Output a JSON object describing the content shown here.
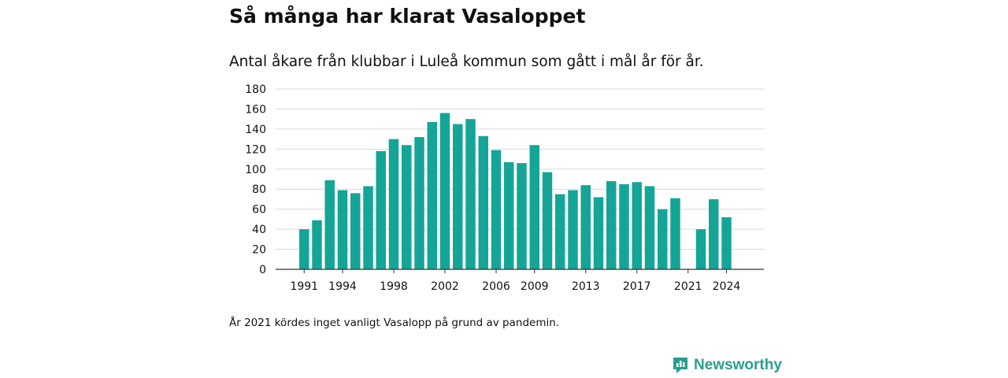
{
  "title": "Så många har klarat Vasaloppet",
  "subtitle": "Antal åkare från klubbar i Luleå kommun som gått i mål år för år.",
  "note": "År 2021 kördes inget vanligt Vasalopp på grund av pandemin.",
  "brand": {
    "name": "Newsworthy",
    "logo_icon": "newsworthy-logo-icon",
    "color": "#2a9d8f"
  },
  "colors": {
    "bar": "#15a597",
    "grid": "#d9d9d9",
    "axis": "#333333"
  },
  "chart_data": {
    "type": "bar",
    "title": "",
    "xlabel": "",
    "ylabel": "",
    "ylim": [
      0,
      180
    ],
    "yticks": [
      0,
      20,
      40,
      60,
      80,
      100,
      120,
      140,
      160,
      180
    ],
    "xtick_labels": [
      "1991",
      "1994",
      "1998",
      "2002",
      "2006",
      "2009",
      "2013",
      "2017",
      "2021",
      "2024"
    ],
    "grid": true,
    "legend": "none",
    "categories": [
      1991,
      1992,
      1993,
      1994,
      1995,
      1996,
      1997,
      1998,
      1999,
      2000,
      2001,
      2002,
      2003,
      2004,
      2005,
      2006,
      2007,
      2008,
      2009,
      2010,
      2011,
      2012,
      2013,
      2014,
      2015,
      2016,
      2017,
      2018,
      2019,
      2020,
      2021,
      2022,
      2023,
      2024
    ],
    "values": [
      40,
      49,
      89,
      79,
      76,
      83,
      118,
      130,
      124,
      132,
      147,
      156,
      145,
      150,
      133,
      119,
      107,
      106,
      124,
      97,
      75,
      79,
      84,
      72,
      88,
      85,
      87,
      83,
      60,
      71,
      0,
      40,
      70,
      52
    ]
  }
}
